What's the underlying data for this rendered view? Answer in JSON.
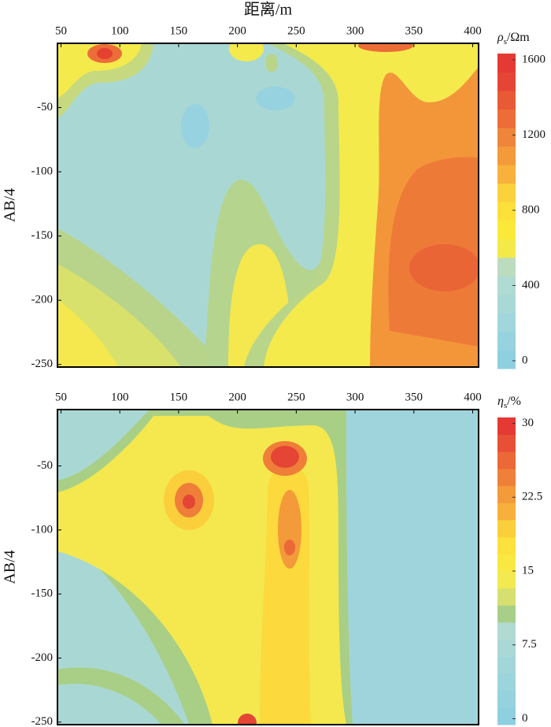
{
  "chart_data": [
    {
      "type": "contour",
      "xlabel": "距离/m",
      "ylabel": "AB/4",
      "xlim": [
        47,
        405
      ],
      "xticks": [
        50,
        100,
        150,
        200,
        250,
        300,
        350,
        400
      ],
      "ylim": [
        -252,
        0
      ],
      "yticks": [
        -250,
        -200,
        -150,
        -100,
        -50
      ],
      "colorbar": {
        "label": {
          "symbol": "ρ",
          "subscript": "s",
          "unit": "/Ωm"
        },
        "lim": [
          -42,
          1633
        ],
        "ticks": [
          0,
          400,
          800,
          1200,
          1600
        ],
        "colors": [
          "#8ecfe0",
          "#96d3df",
          "#a0d6dc",
          "#a9d9d6",
          "#b0dbd2",
          "#bcdcc0",
          "#f3ea4a",
          "#fbe93a",
          "#fde03a",
          "#fbd23c",
          "#f7b13c",
          "#f39a3a",
          "#ef853a",
          "#ec6d38",
          "#e85a36",
          "#e54535",
          "#e43a33"
        ]
      }
    },
    {
      "type": "contour",
      "ylabel": "AB/4",
      "xlim": [
        47,
        405
      ],
      "xticks": [
        50,
        100,
        150,
        200,
        250,
        300,
        350,
        400
      ],
      "ylim": [
        -252,
        -6
      ],
      "yticks": [
        -250,
        -200,
        -150,
        -100,
        -50
      ],
      "colorbar": {
        "label": {
          "symbol": "η",
          "subscript": "s",
          "unit": "/%"
        },
        "lim": [
          -0.6,
          30.6
        ],
        "ticks": [
          0,
          7.5,
          15,
          22.5,
          30
        ],
        "colors": [
          "#8ecfe0",
          "#95d2de",
          "#9cd4dc",
          "#a3d6d9",
          "#aad8d6",
          "#b1dad3",
          "#a8cf8a",
          "#d6e070",
          "#f2ea50",
          "#f9e842",
          "#fde13c",
          "#fbcf3b",
          "#f7b03b",
          "#f39a3a",
          "#ef8039",
          "#eb6837",
          "#e75036",
          "#e43a33"
        ]
      }
    }
  ]
}
